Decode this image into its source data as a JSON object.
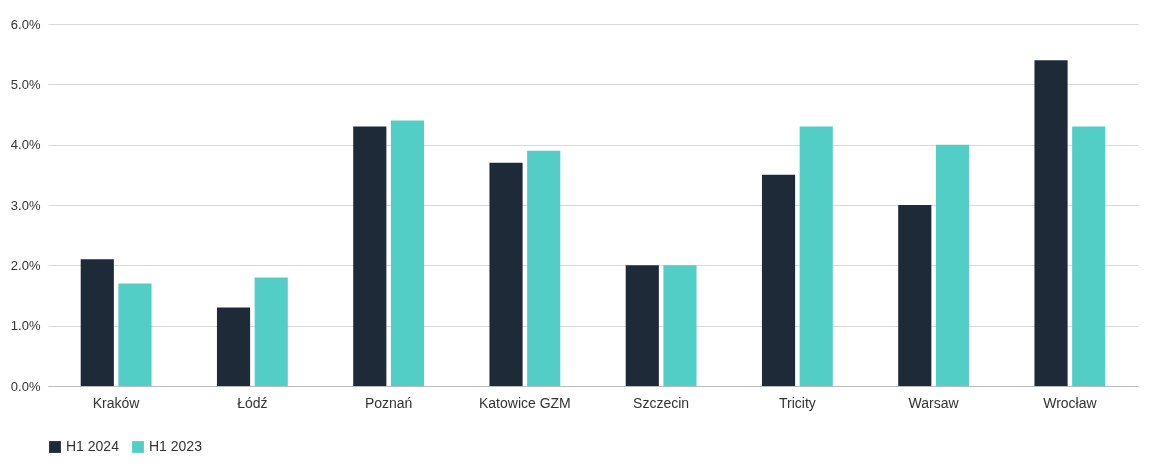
{
  "chart_data": {
    "type": "bar",
    "categories": [
      "Kraków",
      "Łódź",
      "Poznań",
      "Katowice GZM",
      "Szczecin",
      "Tricity",
      "Warsaw",
      "Wrocław"
    ],
    "series": [
      {
        "name": "H1 2024",
        "color": "#1f2a38",
        "values": [
          2.1,
          1.3,
          4.3,
          3.7,
          2.0,
          3.5,
          3.0,
          5.4
        ]
      },
      {
        "name": "H1 2023",
        "color": "#52cec6",
        "values": [
          1.7,
          1.8,
          4.4,
          3.9,
          2.0,
          4.3,
          4.0,
          4.3
        ]
      }
    ],
    "ylim": [
      0,
      6
    ],
    "yticks": [
      {
        "value": 0,
        "label": "0.0%"
      },
      {
        "value": 1,
        "label": "1.0%"
      },
      {
        "value": 2,
        "label": "2.0%"
      },
      {
        "value": 3,
        "label": "3.0%"
      },
      {
        "value": 4,
        "label": "4.0%"
      },
      {
        "value": 5,
        "label": "5.0%"
      },
      {
        "value": 6,
        "label": "6.0%"
      }
    ],
    "grid": "y",
    "legend": "bottom"
  }
}
